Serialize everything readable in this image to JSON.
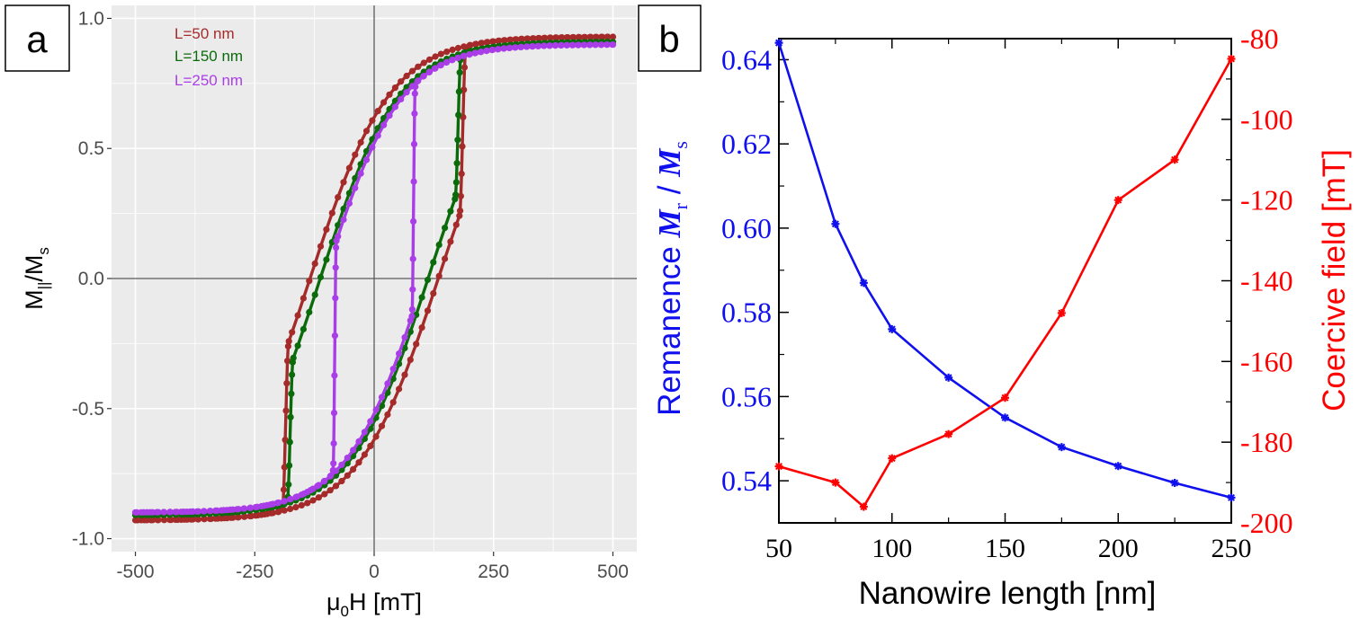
{
  "colors": {
    "panel_bg": "#ebebeb",
    "grid": "#ffffff",
    "axis_zero": "#555555",
    "l50": "#a52a2a",
    "l150": "#0b6b0b",
    "l250": "#a93ee8",
    "blue": "#1010ee",
    "red": "#ff0000"
  },
  "chart_data": [
    {
      "panel": "a",
      "type": "line",
      "label": "a",
      "xlabel_main": "μ",
      "xlabel_sub": "0",
      "xlabel_rest": "H [mT]",
      "ylabel_main": "M",
      "ylabel_sub": "||",
      "ylabel_rest": "/M",
      "ylabel_sub2": "s",
      "xlim": [
        -550,
        550
      ],
      "ylim": [
        -1.05,
        1.05
      ],
      "xticks": [
        -500,
        -250,
        0,
        250,
        500
      ],
      "xtick_labels": [
        "-500",
        "-250",
        "0",
        "250",
        "500"
      ],
      "yticks": [
        1.0,
        0.5,
        0.0,
        -0.5,
        -1.0
      ],
      "ytick_labels": [
        "1.0",
        "0.5",
        "0.0",
        "-0.5",
        "-1.0"
      ],
      "grid": true,
      "legend_position": "top-left",
      "series": [
        {
          "name": "L=50 nm",
          "color_key": "l50",
          "Hc": 190,
          "Ms_edge": 0.93,
          "Mr": 0.62
        },
        {
          "name": "L=150 nm",
          "color_key": "l150",
          "Hc": 180,
          "Ms_edge": 0.91,
          "Mr": 0.55
        },
        {
          "name": "L=250 nm",
          "color_key": "l250",
          "Hc": 85,
          "Ms_edge": 0.9,
          "Mr": 0.52
        }
      ]
    },
    {
      "panel": "b",
      "type": "line",
      "label": "b",
      "xlabel": "Nanowire length [nm]",
      "x": [
        50,
        75,
        87.5,
        100,
        125,
        150,
        175,
        200,
        225,
        250
      ],
      "xlim": [
        50,
        250
      ],
      "xticks": [
        50,
        100,
        150,
        200,
        250
      ],
      "xtick_labels": [
        "50",
        "100",
        "150",
        "200",
        "250"
      ],
      "left_axis": {
        "label_pre": "Remanence  ",
        "label_M1": "M",
        "label_sub1": "r",
        "label_mid": " / ",
        "label_M2": "M",
        "label_sub2": "s",
        "ylim": [
          0.53,
          0.645
        ],
        "yticks": [
          0.54,
          0.56,
          0.58,
          0.6,
          0.62,
          0.64
        ],
        "ytick_labels": [
          "0.54",
          "0.56",
          "0.58",
          "0.60",
          "0.62",
          "0.64"
        ]
      },
      "right_axis": {
        "label": "Coercive field [mT]",
        "ylim": [
          -200,
          -80
        ],
        "yticks": [
          -80,
          -100,
          -120,
          -140,
          -160,
          -180,
          -200
        ],
        "ytick_labels": [
          "-80",
          "-100",
          "-120",
          "-140",
          "-160",
          "-180",
          "-200"
        ]
      },
      "series": [
        {
          "name": "Remanence",
          "axis": "left",
          "color_key": "blue",
          "values": [
            0.644,
            0.601,
            0.587,
            0.576,
            0.5645,
            0.555,
            0.548,
            0.5435,
            0.5395,
            0.536
          ]
        },
        {
          "name": "Coercive field",
          "axis": "right",
          "color_key": "red",
          "values": [
            -186,
            -190,
            -196,
            -184,
            -178,
            -169,
            -148,
            -120,
            -110,
            -85
          ]
        }
      ]
    }
  ]
}
